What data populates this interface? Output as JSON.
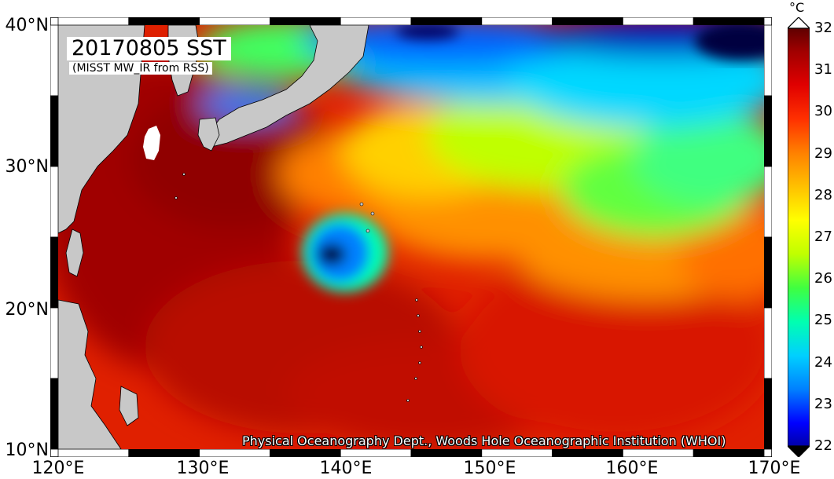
{
  "title": "20170805 SST",
  "subtitle": "(MISST MW_IR from RSS)",
  "credit": "Physical Oceanography Dept., Woods Hole Oceanographic Institution (WHOI)",
  "colorbar": {
    "unit": "°C",
    "min": 22,
    "max": 32,
    "ticks": [
      "32",
      "31",
      "30",
      "29",
      "28",
      "27",
      "26",
      "25",
      "24",
      "23",
      "22"
    ],
    "colors": [
      "#000080",
      "#0000ff",
      "#0080ff",
      "#00d0ff",
      "#00ffb0",
      "#40ff40",
      "#c0ff00",
      "#ffff00",
      "#ffc000",
      "#ff8000",
      "#ff3000",
      "#e00000",
      "#a00000",
      "#400000"
    ]
  },
  "map": {
    "lon_range": [
      120,
      170
    ],
    "lat_range": [
      10,
      40
    ],
    "lat_labels": [
      "40°N",
      "30°N",
      "20°N",
      "10°N"
    ],
    "lon_labels": [
      "120°E",
      "130°E",
      "140°E",
      "150°E",
      "160°E",
      "170°E"
    ],
    "land_color": "#c8c8c8"
  }
}
